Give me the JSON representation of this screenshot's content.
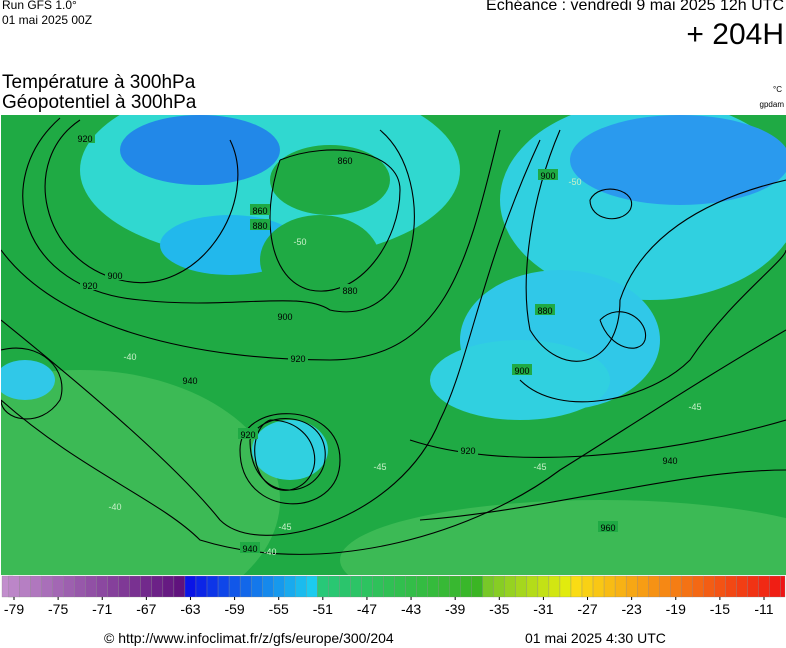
{
  "header": {
    "run": "Run GFS 1.0°",
    "run_date": "01 mai 2025 00Z",
    "echeance": "Echéance : vendredi 9 mai 2025 12h UTC",
    "lead": "+ 204H",
    "title_temp": "Température à 300hPa",
    "title_geo": "Géopotentiel à 300hPa",
    "unit_temp": "°C",
    "unit_geo": "gpdam"
  },
  "map": {
    "contour_labels": [
      920,
      860,
      880,
      900,
      900,
      920,
      940,
      920,
      940,
      960,
      900,
      920,
      940,
      920,
      880,
      860,
      880,
      900
    ],
    "temp_labels": [
      -50,
      -40,
      -45,
      -45,
      -40,
      -40,
      -50,
      -45,
      -45
    ]
  },
  "legend": {
    "ticks": [
      -79,
      -75,
      -71,
      -67,
      -63,
      -59,
      -55,
      -51,
      -47,
      -43,
      -39,
      -35,
      -31,
      -27,
      -23,
      -19,
      -15,
      -11
    ]
  },
  "footer": {
    "url": "© http://www.infoclimat.fr/z/gfs/europe/300/204",
    "date": "01 mai 2025  4:30 UTC"
  }
}
